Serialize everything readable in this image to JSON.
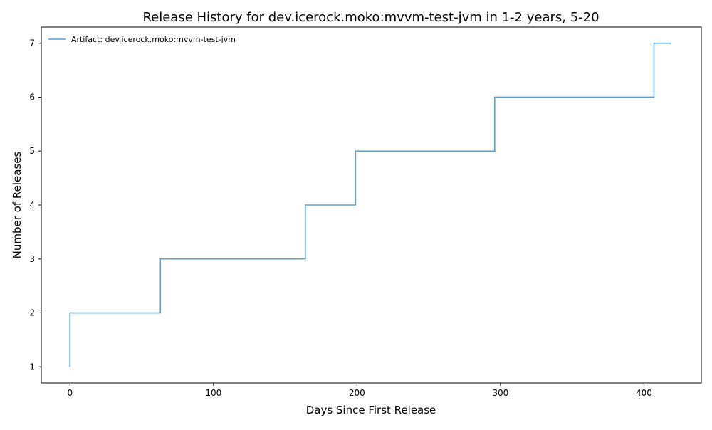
{
  "chart_data": {
    "type": "line",
    "step": "post",
    "title": "Release History for dev.icerock.moko:mvvm-test-jvm in 1-2 years, 5-20",
    "xlabel": "Days Since First Release",
    "ylabel": "Number of Releases",
    "xlim": [
      -20,
      440
    ],
    "ylim": [
      0.7,
      7.3
    ],
    "xticks": [
      0,
      100,
      200,
      300,
      400
    ],
    "yticks": [
      1,
      2,
      3,
      4,
      5,
      6,
      7
    ],
    "grid": false,
    "legend_position": "top-left",
    "series": [
      {
        "name": "Artifact: dev.icerock.moko:mvvm-test-jvm",
        "color": "#5b9fd2",
        "x": [
          0,
          0,
          63,
          164,
          199,
          296,
          407,
          419
        ],
        "y": [
          1,
          2,
          3,
          4,
          5,
          6,
          7,
          7
        ]
      }
    ]
  }
}
